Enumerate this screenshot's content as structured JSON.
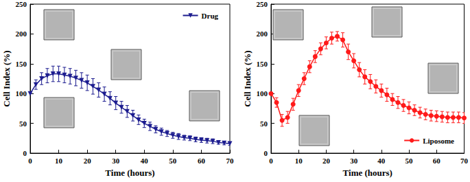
{
  "chart_data": [
    {
      "type": "line",
      "x_label": "Time (hours)",
      "y_label": "Cell Index (%)",
      "x": [
        0,
        2,
        4,
        6,
        8,
        10,
        12,
        14,
        16,
        18,
        20,
        22,
        24,
        26,
        28,
        30,
        32,
        34,
        36,
        38,
        40,
        42,
        44,
        46,
        48,
        50,
        52,
        54,
        56,
        58,
        60,
        62,
        64,
        66,
        68,
        70
      ],
      "series": [
        {
          "name": "Drug",
          "color": "#1c1c8f",
          "marker": "triangle-down",
          "values": [
            100,
            115,
            125,
            130,
            133,
            133,
            131,
            129,
            126,
            122,
            118,
            112,
            106,
            99,
            92,
            84,
            77,
            70,
            63,
            56,
            50,
            45,
            40,
            36,
            33,
            30,
            28,
            26,
            25,
            23,
            22,
            21,
            20,
            18,
            17,
            16
          ],
          "errors": [
            0,
            8,
            10,
            12,
            13,
            13,
            13,
            13,
            13,
            13,
            13,
            13,
            12,
            12,
            11,
            11,
            10,
            10,
            9,
            8,
            7,
            7,
            6,
            6,
            5,
            5,
            5,
            4,
            4,
            4,
            4,
            4,
            4,
            3,
            3,
            3
          ]
        }
      ],
      "xlim": [
        0,
        70
      ],
      "xticks": [
        0,
        10,
        20,
        30,
        40,
        50,
        60,
        70
      ],
      "ylim": [
        0,
        250
      ],
      "yticks": [
        0,
        50,
        100,
        150,
        200,
        250
      ],
      "legend": "upper right"
    },
    {
      "type": "line",
      "x_label": "Time (hours)",
      "y_label": "Cell Index (%)",
      "x": [
        0,
        2,
        4,
        6,
        8,
        10,
        12,
        14,
        16,
        18,
        20,
        22,
        24,
        26,
        28,
        30,
        32,
        34,
        36,
        38,
        40,
        42,
        44,
        46,
        48,
        50,
        52,
        54,
        56,
        58,
        60,
        62,
        64,
        66,
        68,
        70
      ],
      "series": [
        {
          "name": "Liposome",
          "color": "#ff1a1a",
          "marker": "circle",
          "values": [
            100,
            85,
            55,
            60,
            82,
            105,
            125,
            145,
            162,
            175,
            185,
            193,
            196,
            190,
            170,
            155,
            140,
            128,
            120,
            112,
            105,
            98,
            90,
            85,
            80,
            76,
            72,
            68,
            65,
            63,
            62,
            61,
            60,
            60,
            60,
            59
          ],
          "errors": [
            0,
            8,
            10,
            10,
            10,
            10,
            10,
            10,
            10,
            10,
            10,
            10,
            8,
            12,
            13,
            12,
            12,
            12,
            12,
            11,
            11,
            11,
            10,
            10,
            10,
            10,
            9,
            9,
            9,
            9,
            9,
            9,
            9,
            9,
            9,
            9
          ]
        }
      ],
      "xlim": [
        0,
        70
      ],
      "xticks": [
        0,
        10,
        20,
        30,
        40,
        50,
        60,
        70
      ],
      "ylim": [
        0,
        250
      ],
      "yticks": [
        0,
        50,
        100,
        150,
        200,
        250
      ],
      "legend": "lower right"
    }
  ]
}
